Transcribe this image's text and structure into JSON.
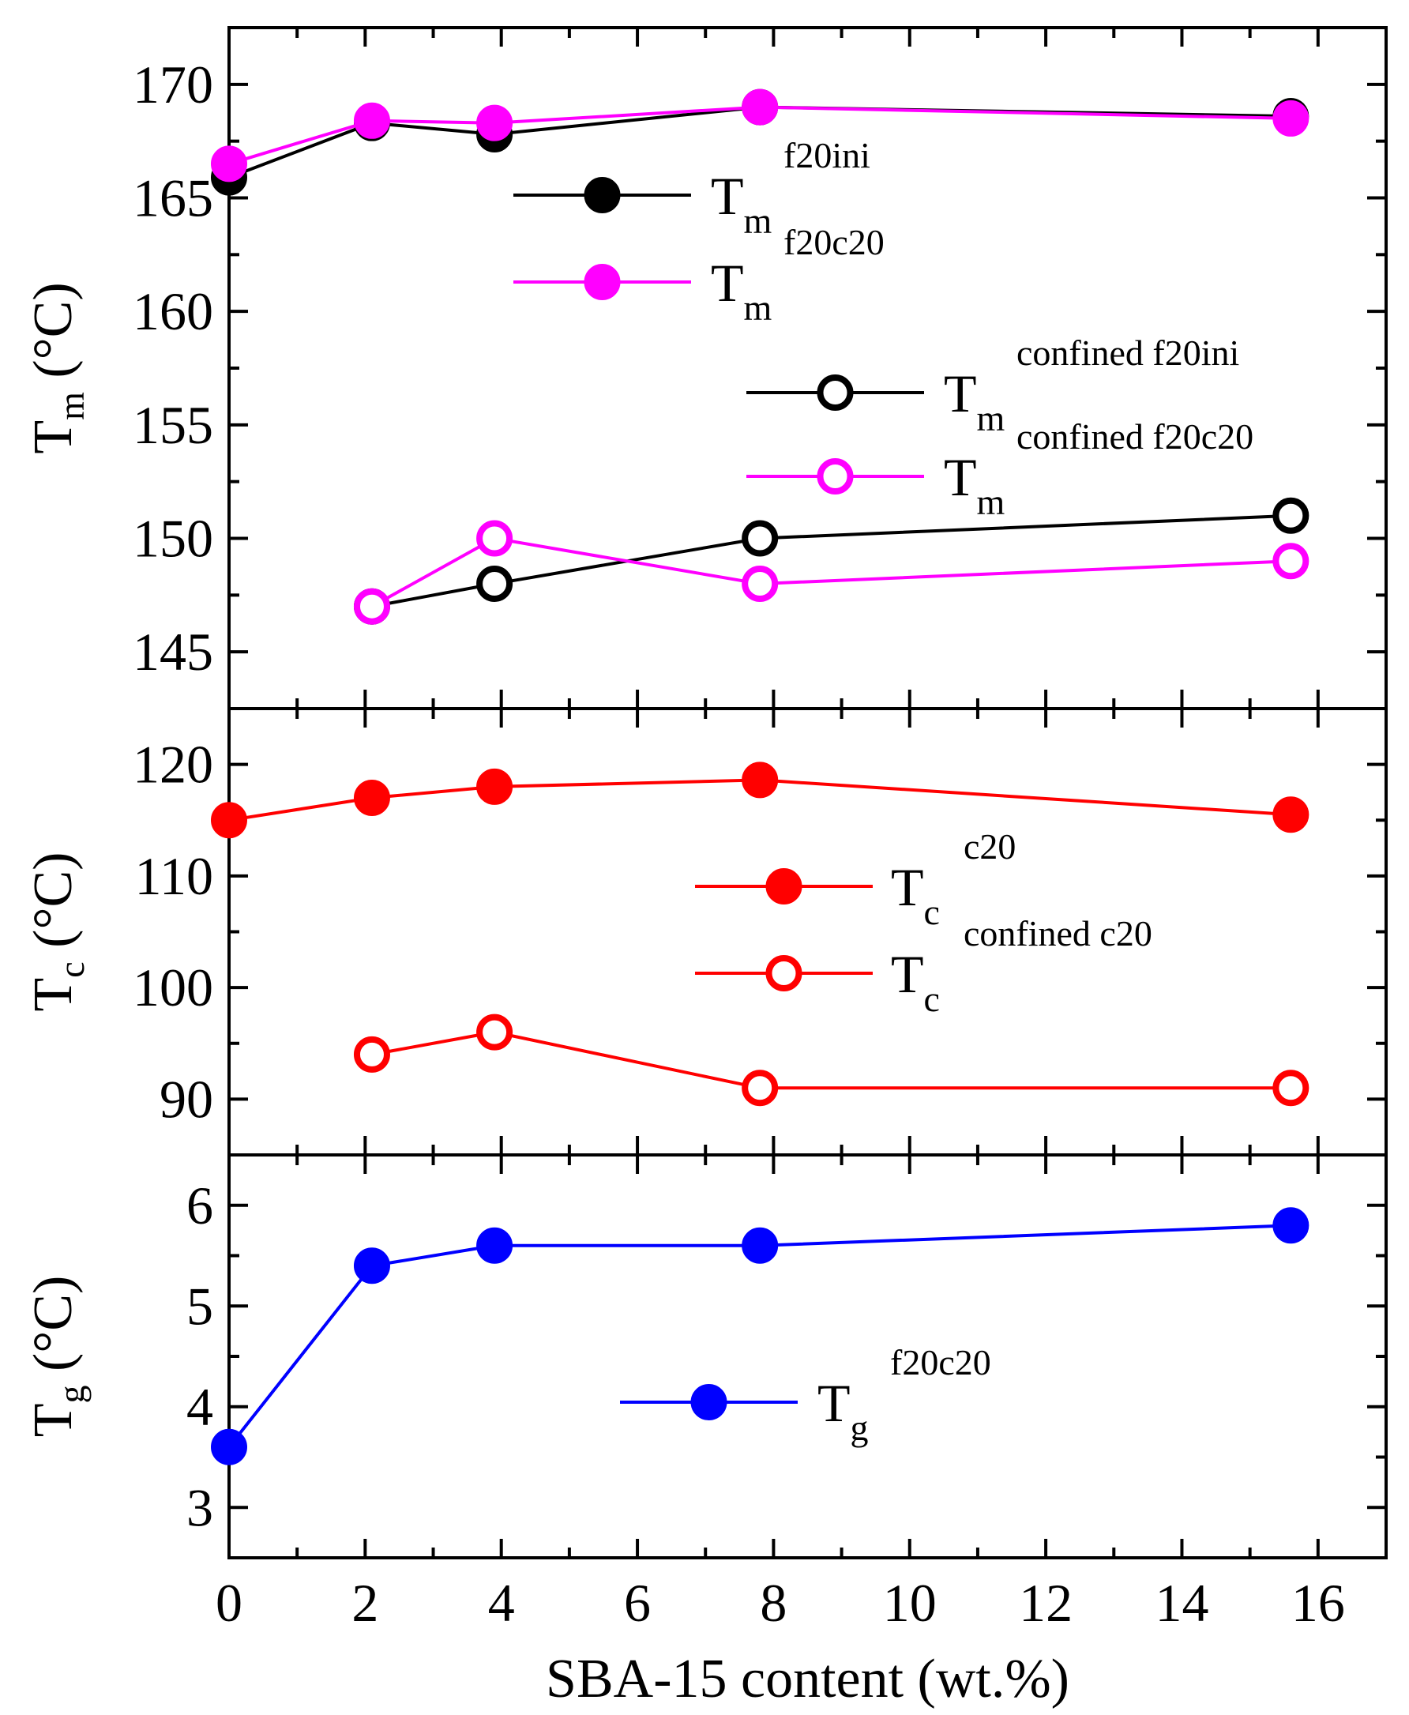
{
  "chart_data": [
    {
      "type": "line",
      "panel": "top",
      "ylabel": {
        "main": "T",
        "sub": "m",
        "unit": " (°C)"
      },
      "ylim": [
        142.5,
        172.5
      ],
      "yticks": [
        145,
        150,
        155,
        160,
        165,
        170
      ],
      "xlim": [
        0,
        17
      ],
      "series": [
        {
          "name": {
            "main": "T",
            "sub": "m",
            "sup": "f20ini"
          },
          "color": "#000000",
          "filled": true,
          "x": [
            0,
            2.1,
            3.9,
            7.8,
            15.6
          ],
          "y": [
            165.9,
            168.3,
            167.8,
            169.0,
            168.6
          ]
        },
        {
          "name": {
            "main": "T",
            "sub": "m",
            "sup": "f20c20"
          },
          "color": "#ff00ff",
          "filled": true,
          "x": [
            0,
            2.1,
            3.9,
            7.8,
            15.6
          ],
          "y": [
            166.5,
            168.4,
            168.3,
            169.0,
            168.5
          ]
        },
        {
          "name": {
            "main": "T",
            "sub": "m",
            "sup": "confined f20ini"
          },
          "color": "#000000",
          "filled": false,
          "x": [
            2.1,
            3.9,
            7.8,
            15.6
          ],
          "y": [
            147,
            148,
            150,
            151
          ]
        },
        {
          "name": {
            "main": "T",
            "sub": "m",
            "sup": "confined f20c20"
          },
          "color": "#ff00ff",
          "filled": false,
          "x": [
            2.1,
            3.9,
            7.8,
            15.6
          ],
          "y": [
            147,
            150,
            148,
            149
          ]
        }
      ]
    },
    {
      "type": "line",
      "panel": "middle",
      "ylabel": {
        "main": "T",
        "sub": "c",
        "unit": " (°C)"
      },
      "ylim": [
        85,
        125
      ],
      "yticks": [
        90,
        100,
        110,
        120
      ],
      "xlim": [
        0,
        17
      ],
      "series": [
        {
          "name": {
            "main": "T",
            "sub": "c",
            "sup": "c20"
          },
          "color": "#ff0000",
          "filled": true,
          "x": [
            0,
            2.1,
            3.9,
            7.8,
            15.6
          ],
          "y": [
            115.0,
            117.0,
            118.0,
            118.6,
            115.5
          ]
        },
        {
          "name": {
            "main": "T",
            "sub": "c",
            "sup": "confined c20"
          },
          "color": "#ff0000",
          "filled": false,
          "x": [
            2.1,
            3.9,
            7.8,
            15.6
          ],
          "y": [
            94,
            96,
            91,
            91
          ]
        }
      ]
    },
    {
      "type": "line",
      "panel": "bottom",
      "ylabel": {
        "main": "T",
        "sub": "g",
        "unit": " (°C)"
      },
      "ylim": [
        2.5,
        6.5
      ],
      "yticks": [
        3,
        4,
        5,
        6
      ],
      "xlim": [
        0,
        17
      ],
      "xticks": [
        0,
        2,
        4,
        6,
        8,
        10,
        12,
        14,
        16
      ],
      "xtick_labels": [
        "0",
        "2",
        "4",
        "6",
        "8",
        "10",
        "12",
        "14",
        "16"
      ],
      "xlabel": "SBA-15 content (wt.%)",
      "series": [
        {
          "name": {
            "main": "T",
            "sub": "g",
            "sup": "f20c20"
          },
          "color": "#0000ff",
          "filled": true,
          "x": [
            0,
            2.1,
            3.9,
            7.8,
            15.6
          ],
          "y": [
            3.6,
            5.4,
            5.6,
            5.6,
            5.8
          ]
        }
      ]
    }
  ]
}
